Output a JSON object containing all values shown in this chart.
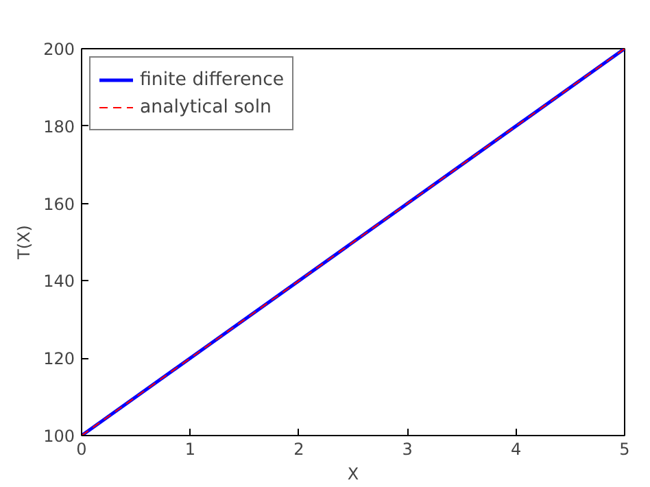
{
  "chart_data": {
    "type": "line",
    "xlabel": "X",
    "ylabel": "T(X)",
    "x": [
      0,
      5
    ],
    "series": [
      {
        "name": "finite difference",
        "color": "#0000ff",
        "values": [
          100,
          200
        ],
        "line_style": "solid"
      },
      {
        "name": "analytical soln",
        "color": "#ff0000",
        "values": [
          100,
          200
        ],
        "line_style": "dashed"
      }
    ],
    "xlim": [
      0,
      5
    ],
    "ylim": [
      100,
      200
    ],
    "xticks": [
      0,
      1,
      2,
      3,
      4,
      5
    ],
    "yticks": [
      100,
      120,
      140,
      160,
      180,
      200
    ],
    "grid": false,
    "legend": "top left",
    "marker": "none"
  }
}
